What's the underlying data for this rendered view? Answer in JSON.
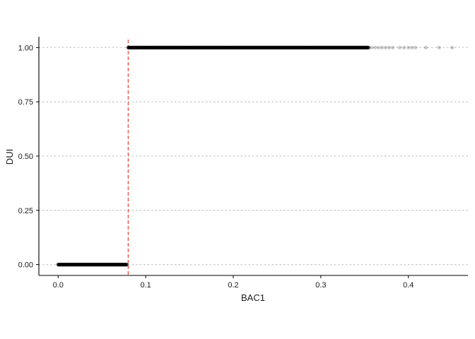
{
  "chart_data": {
    "type": "scatter",
    "xlabel": "BAC1",
    "ylabel": "DUI",
    "xlim": [
      -0.022,
      0.468
    ],
    "ylim": [
      -0.05,
      1.05
    ],
    "x_ticks": [
      0.0,
      0.1,
      0.2,
      0.3,
      0.4
    ],
    "x_tick_labels": [
      "0.0",
      "0.1",
      "0.2",
      "0.3",
      "0.4"
    ],
    "y_ticks": [
      0.0,
      0.25,
      0.5,
      0.75,
      1.0
    ],
    "y_tick_labels": [
      "0.00",
      "0.25",
      "0.50",
      "0.75",
      "1.00"
    ],
    "grid": "horizontal dotted",
    "cutoff": {
      "x": 0.08,
      "color": "#e8402e",
      "style": "dashed"
    },
    "point_color": "#000000",
    "point_alpha": 0.2,
    "series": [
      {
        "y": 0,
        "dense_x_range": [
          0.0,
          0.079
        ],
        "sparse_x": []
      },
      {
        "y": 1,
        "dense_x_range": [
          0.08,
          0.355
        ],
        "sparse_x": [
          0.358,
          0.362,
          0.366,
          0.37,
          0.374,
          0.378,
          0.382,
          0.39,
          0.395,
          0.4,
          0.404,
          0.408,
          0.42,
          0.435,
          0.45
        ]
      }
    ]
  }
}
